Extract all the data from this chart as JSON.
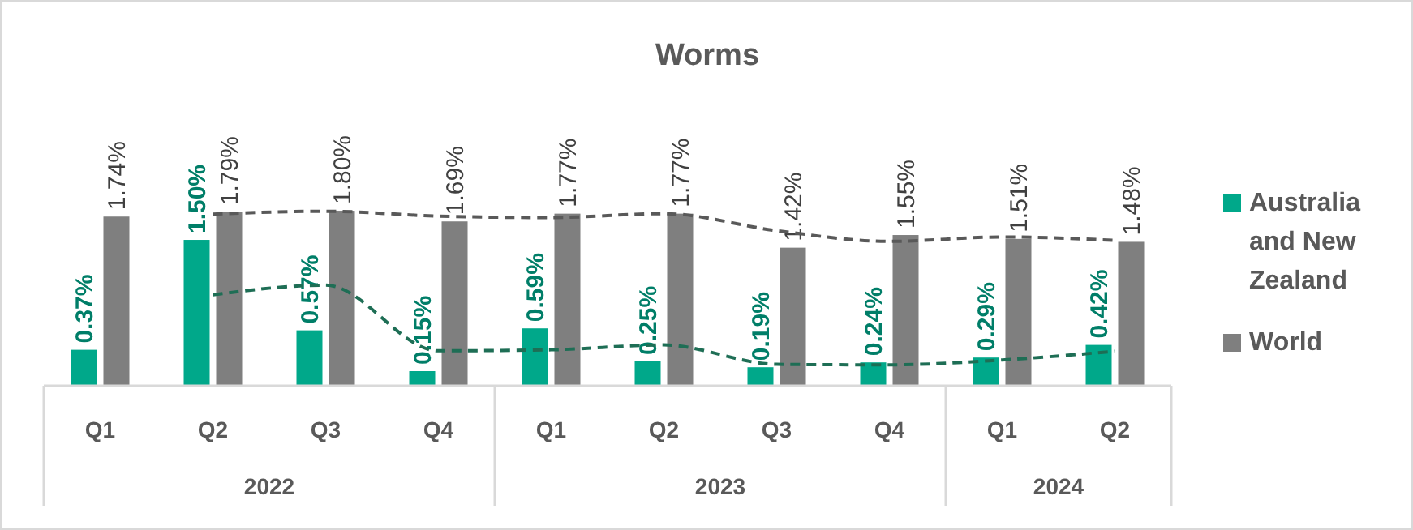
{
  "chart_data": {
    "type": "bar",
    "title": "Worms",
    "categories": [
      "Q1",
      "Q2",
      "Q3",
      "Q4",
      "Q1",
      "Q2",
      "Q3",
      "Q4",
      "Q1",
      "Q2"
    ],
    "annotations": [
      "2022",
      "2023",
      "2024"
    ],
    "series": [
      {
        "name": "Australia and New Zealand",
        "color": "#00a88a",
        "values": [
          0.37,
          1.5,
          0.57,
          0.15,
          0.59,
          0.25,
          0.19,
          0.24,
          0.29,
          0.42
        ],
        "value_labels": [
          "0.37%",
          "1.50%",
          "0.57%",
          "0.15%",
          "0.59%",
          "0.25%",
          "0.19%",
          "0.24%",
          "0.29%",
          "0.42%"
        ]
      },
      {
        "name": "World",
        "color": "#7f7f7f",
        "values": [
          1.74,
          1.79,
          1.8,
          1.69,
          1.77,
          1.77,
          1.42,
          1.55,
          1.51,
          1.48
        ],
        "value_labels": [
          "1.74%",
          "1.79%",
          "1.80%",
          "1.69%",
          "1.77%",
          "1.77%",
          "1.42%",
          "1.55%",
          "1.51%",
          "1.48%"
        ]
      },
      {
        "type": "line",
        "color": "#1e6e55",
        "values": [
          null,
          0.935,
          1.035,
          0.36,
          0.37,
          0.42,
          0.22,
          0.215,
          0.265,
          0.355
        ]
      },
      {
        "type": "line",
        "color": "#595959",
        "values": [
          null,
          1.765,
          1.795,
          1.745,
          1.73,
          1.77,
          1.595,
          1.485,
          1.53,
          1.495
        ]
      }
    ],
    "line_style": "dashed",
    "legend": "right"
  }
}
